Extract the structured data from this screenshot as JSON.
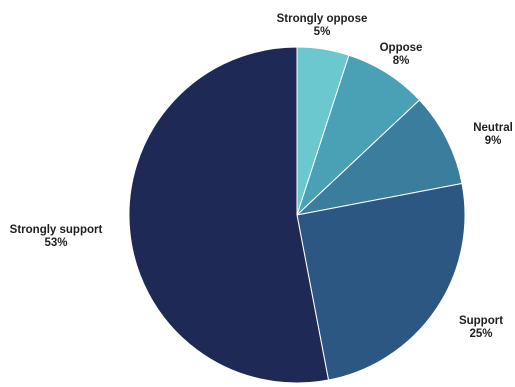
{
  "chart_data": {
    "type": "pie",
    "title": "",
    "start_angle_deg": 0,
    "direction": "clockwise",
    "slices": [
      {
        "key": "strongly_oppose",
        "label": "Strongly oppose",
        "value": 5,
        "value_label": "5%",
        "color": "#6cc8cf"
      },
      {
        "key": "oppose",
        "label": "Oppose",
        "value": 8,
        "value_label": "8%",
        "color": "#4aa1b5"
      },
      {
        "key": "neutral",
        "label": "Neutral",
        "value": 9,
        "value_label": "9%",
        "color": "#3a7d9d"
      },
      {
        "key": "support",
        "label": "Support",
        "value": 25,
        "value_label": "25%",
        "color": "#2d5783"
      },
      {
        "key": "strongly_support",
        "label": "Strongly support",
        "value": 53,
        "value_label": "53%",
        "color": "#1e2a55"
      }
    ]
  }
}
